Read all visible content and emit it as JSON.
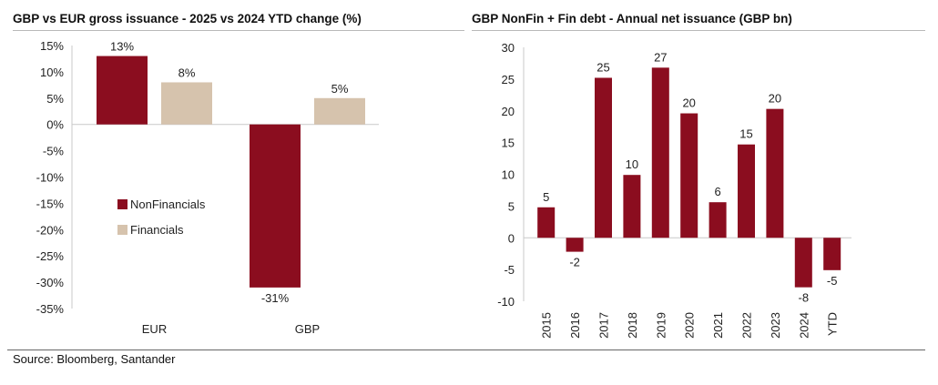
{
  "colors": {
    "nonfinancials": "#8b0d1f",
    "financials": "#d6c3ad",
    "axis": "#c9c9c9"
  },
  "footer": {
    "source": "Source: Bloomberg, Santander"
  },
  "chart_data": [
    {
      "type": "bar",
      "title": "GBP vs EUR gross issuance - 2025 vs 2024 YTD change (%)",
      "categories": [
        "EUR",
        "GBP"
      ],
      "series": [
        {
          "name": "NonFinancials",
          "values": [
            13,
            -31
          ],
          "labels": [
            "13%",
            "-31%"
          ]
        },
        {
          "name": "Financials",
          "values": [
            8,
            5
          ],
          "labels": [
            "8%",
            "5%"
          ]
        }
      ],
      "ylim": [
        -35,
        15
      ],
      "yticks": [
        "15%",
        "10%",
        "5%",
        "0%",
        "-5%",
        "-10%",
        "-15%",
        "-20%",
        "-25%",
        "-30%",
        "-35%"
      ],
      "legend": "left-middle",
      "grid": false
    },
    {
      "type": "bar",
      "title": "GBP NonFin + Fin debt - Annual net issuance (GBP bn)",
      "categories": [
        "2015",
        "2016",
        "2017",
        "2018",
        "2019",
        "2020",
        "2021",
        "2022",
        "2023",
        "2024",
        "YTD"
      ],
      "series": [
        {
          "values": [
            4.8,
            -2.2,
            25.2,
            9.9,
            26.8,
            19.6,
            5.6,
            14.7,
            20.3,
            -7.8,
            -5.1
          ],
          "labels": [
            "5",
            "-2",
            "25",
            "10",
            "27",
            "20",
            "6",
            "15",
            "20",
            "-8",
            "-5"
          ]
        }
      ],
      "ylim": [
        -10,
        30
      ],
      "yticks": [
        "30",
        "25",
        "20",
        "15",
        "10",
        "5",
        "0",
        "-5",
        "-10",
        "",
        ""
      ],
      "grid": false
    }
  ]
}
